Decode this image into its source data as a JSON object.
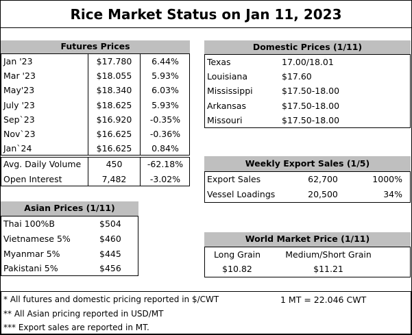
{
  "title": "Rice Market Status on Jan 11, 2023",
  "futures": {
    "title": "Futures Prices",
    "rows": [
      [
        "Jan '23",
        "$17.780",
        "6.44%"
      ],
      [
        "Mar '23",
        "$18.055",
        "5.93%"
      ],
      [
        "May'23",
        "$18.340",
        "6.03%"
      ],
      [
        "July '23",
        "$18.625",
        "5.93%"
      ],
      [
        "Sep`23",
        "$16.920",
        "-0.35%"
      ],
      [
        "Nov`23",
        "$16.625",
        "-0.36%"
      ],
      [
        "Jan`24",
        "$16.625",
        "0.84%"
      ]
    ]
  },
  "volume": {
    "rows": [
      [
        "Avg. Daily Volume",
        "450",
        "-62.18%"
      ],
      [
        "Open Interest",
        "7,482",
        "-3.02%"
      ]
    ]
  },
  "asian": {
    "title": "Asian Prices (1/11)",
    "rows": [
      [
        "Thai 100%B",
        "$504"
      ],
      [
        "Vietnamese 5%",
        "$460"
      ],
      [
        "Myanmar 5%",
        "$445"
      ],
      [
        "Pakistani 5%",
        "$456"
      ]
    ]
  },
  "domestic": {
    "title": "Domestic Prices (1/11)",
    "rows": [
      [
        "Texas",
        "17.00/18.01"
      ],
      [
        "Louisiana",
        "$17.60"
      ],
      [
        "Mississippi",
        "$17.50-18.00"
      ],
      [
        "Arkansas",
        "$17.50-18.00"
      ],
      [
        "Missouri",
        "$17.50-18.00"
      ]
    ]
  },
  "export": {
    "title": "Weekly Export Sales (1/5)",
    "rows": [
      [
        "Export Sales",
        "62,700",
        "1000%"
      ],
      [
        "Vessel Loadings",
        "20,500",
        "34%"
      ]
    ]
  },
  "world": {
    "title": "World Market Price (1/11)",
    "headers": [
      "Long Grain",
      "Medium/Short Grain"
    ],
    "values": [
      "$10.82",
      "$11.21"
    ]
  },
  "notes": [
    "* All futures and domestic pricing reported in $/CWT",
    "** All Asian pricing reported in USD/MT",
    "*** Export sales are reported in MT."
  ],
  "conversion": "1 MT = 22.046 CWT"
}
